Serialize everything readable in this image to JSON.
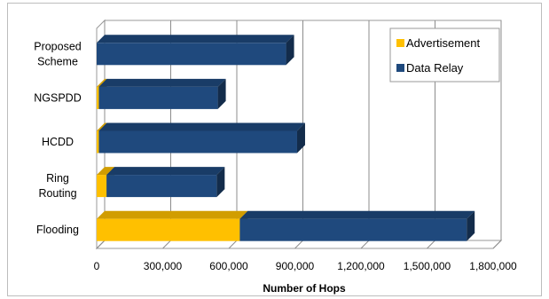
{
  "chart_data": {
    "type": "bar",
    "orientation": "horizontal",
    "stacked": true,
    "style": "3d",
    "categories": [
      "Proposed Scheme",
      "NGSPDD",
      "HCDD",
      "Ring Routing",
      "Flooding"
    ],
    "category_lines": [
      [
        "Proposed",
        "Scheme"
      ],
      [
        "NGSPDD"
      ],
      [
        "HCDD"
      ],
      [
        "Ring",
        "Routing"
      ],
      [
        "Flooding"
      ]
    ],
    "series": [
      {
        "name": "Advertisement",
        "color": "#FFC000",
        "values": [
          0,
          10000,
          10000,
          45000,
          650000
        ]
      },
      {
        "name": "Data Relay",
        "color": "#1F497D",
        "values": [
          860000,
          540000,
          900000,
          500000,
          1030000
        ]
      }
    ],
    "xlabel": "Number of Hops",
    "ylabel": "",
    "xlim": [
      0,
      1800000
    ],
    "xticks": [
      0,
      300000,
      600000,
      900000,
      1200000,
      1500000,
      1800000
    ],
    "xtick_labels": [
      "0",
      "300,000",
      "600,000",
      "900,000",
      "1,200,000",
      "1,500,000",
      "1,800,000"
    ],
    "grid": "vertical",
    "legend": "top-right"
  }
}
